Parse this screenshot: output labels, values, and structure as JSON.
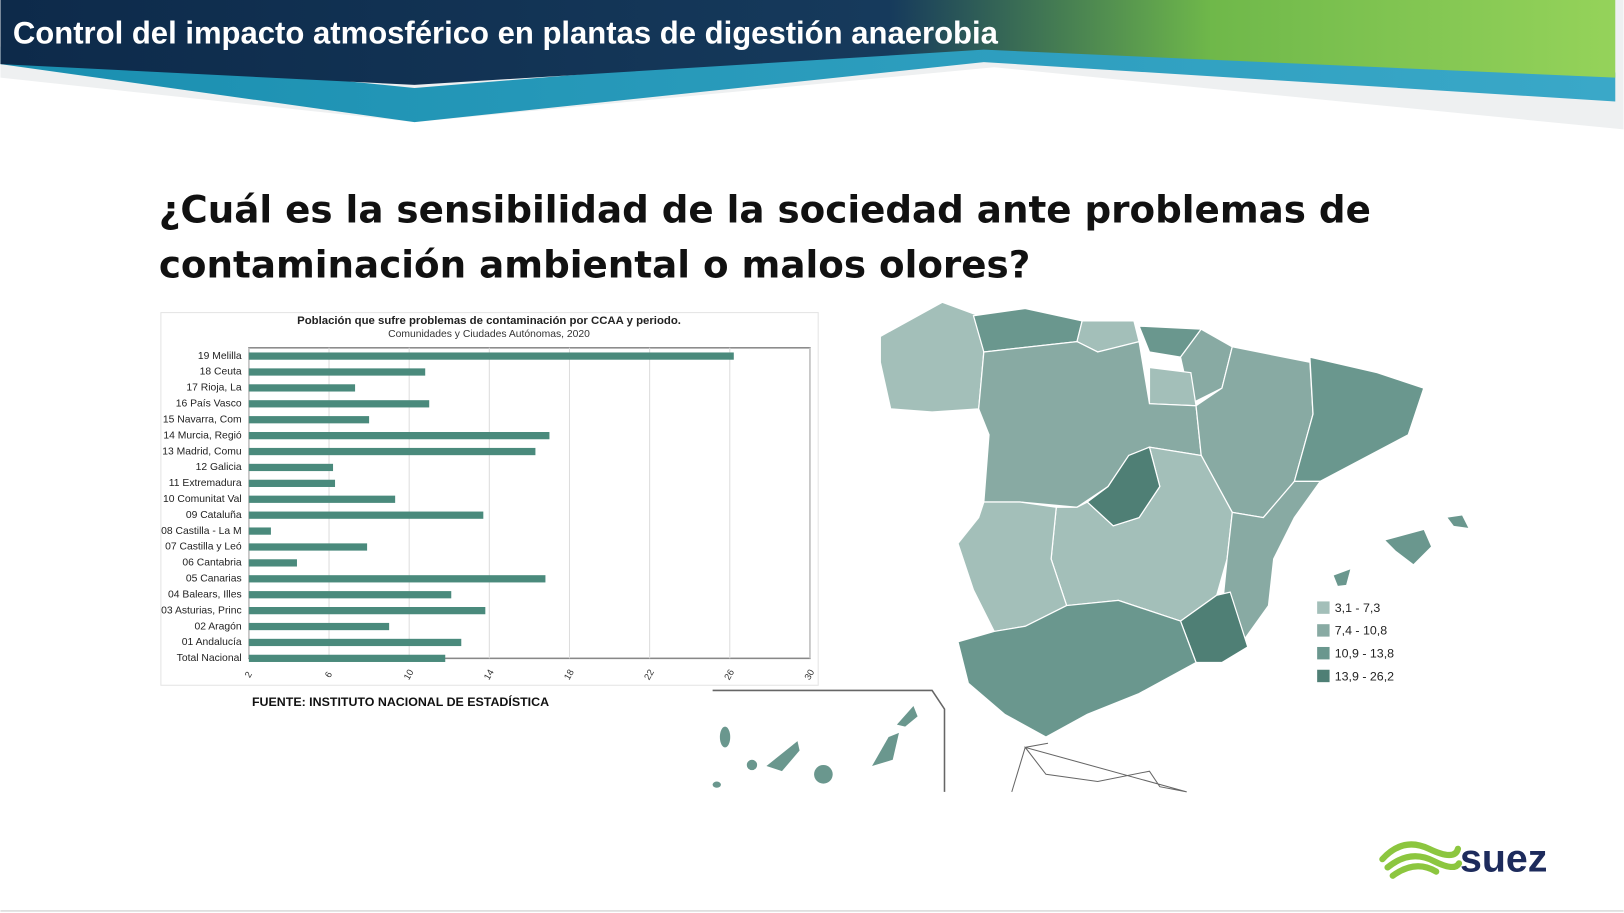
{
  "header": {
    "title": "Control del impacto atmosférico en plantas de digestión anaerobia"
  },
  "heading": [
    "¿Cuál es la sensibilidad de la sociedad ante problemas de",
    "contaminación ambiental o malos olores?"
  ],
  "chart_data": {
    "type": "bar",
    "orientation": "horizontal",
    "title": "Población que sufre problemas de contaminación por CCAA y periodo.",
    "subtitle": "Comunidades y Ciudades Autónomas, 2020",
    "categories": [
      "19 Melilla",
      "18 Ceuta",
      "17 Rioja, La",
      "16 País Vasco",
      "15 Navarra, Com",
      "14 Murcia, Regió",
      "13 Madrid, Comu",
      "12 Galicia",
      "11 Extremadura",
      "10 Comunitat Val",
      "09 Cataluña",
      "08 Castilla - La M",
      "07 Castilla y Leó",
      "06 Cantabria",
      "05 Canarias",
      "04 Balears, Illes",
      "03 Asturias, Princ",
      "02 Aragón",
      "01 Andalucía",
      "Total Nacional"
    ],
    "values": [
      26.2,
      10.8,
      7.3,
      11.0,
      8.0,
      17.0,
      16.3,
      6.2,
      6.3,
      9.3,
      13.7,
      3.1,
      7.9,
      4.4,
      16.8,
      12.1,
      13.8,
      9.0,
      12.6,
      11.8
    ],
    "color": "#4a8a7c",
    "xlim": [
      2,
      30
    ],
    "xticks": [
      2,
      6,
      10,
      14,
      18,
      22,
      26,
      30
    ],
    "grid": true
  },
  "source": "FUENTE: INSTITUTO NACIONAL DE ESTADÍSTICA",
  "map_legend": [
    {
      "label": "3,1 - 7,3",
      "color": "#a3bfb9"
    },
    {
      "label": "7,4 - 10,8",
      "color": "#88aaa3"
    },
    {
      "label": "10,9 - 13,8",
      "color": "#6a978e"
    },
    {
      "label": "13,9 - 26,2",
      "color": "#4f7f75"
    }
  ],
  "logo": "suez"
}
